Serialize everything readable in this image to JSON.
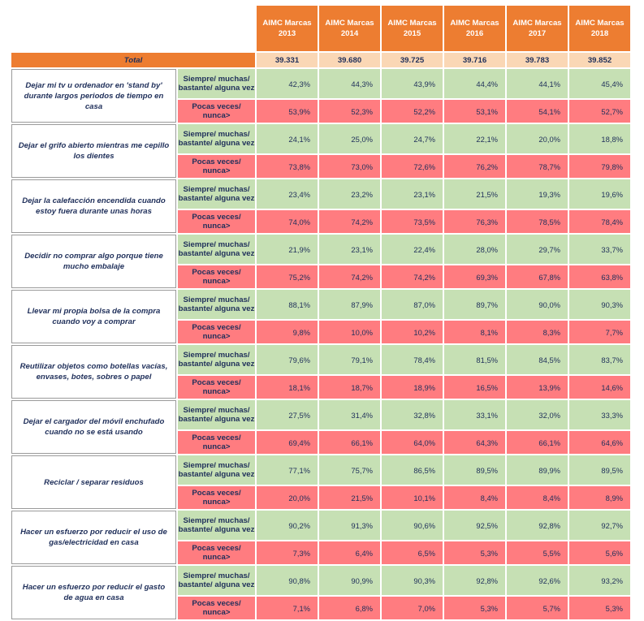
{
  "years": [
    "AIMC Marcas\n2013",
    "AIMC Marcas\n2014",
    "AIMC Marcas\n2015",
    "AIMC Marcas\n2016",
    "AIMC Marcas\n2017",
    "AIMC Marcas\n2018"
  ],
  "year_lines": [
    [
      "AIMC Marcas",
      "2013"
    ],
    [
      "AIMC Marcas",
      "2014"
    ],
    [
      "AIMC Marcas",
      "2015"
    ],
    [
      "AIMC Marcas",
      "2016"
    ],
    [
      "AIMC Marcas",
      "2017"
    ],
    [
      "AIMC Marcas",
      "2018"
    ]
  ],
  "total": {
    "label": "Total",
    "values": [
      "39.331",
      "39.680",
      "39.725",
      "39.716",
      "39.783",
      "39.852"
    ]
  },
  "answer_labels": {
    "positive": "Siempre/ muchas/ bastante/ alguna vez",
    "negative": "Pocas veces/ nunca>"
  },
  "colors": {
    "header": "#ed7d31",
    "total_values": "#fad7b5",
    "positive": "#c6e0b4",
    "negative": "#ff7c80",
    "text": "#1f2f5a"
  },
  "rows": [
    {
      "question": "Dejar mi tv u ordenador en 'stand by' durante largos periodos de tiempo en casa",
      "positive": [
        "42,3%",
        "44,3%",
        "43,9%",
        "44,4%",
        "44,1%",
        "45,4%"
      ],
      "negative": [
        "53,9%",
        "52,3%",
        "52,2%",
        "53,1%",
        "54,1%",
        "52,7%"
      ]
    },
    {
      "question": "Dejar el grifo abierto mientras me cepillo los dientes",
      "positive": [
        "24,1%",
        "25,0%",
        "24,7%",
        "22,1%",
        "20,0%",
        "18,8%"
      ],
      "negative": [
        "73,8%",
        "73,0%",
        "72,6%",
        "76,2%",
        "78,7%",
        "79,8%"
      ]
    },
    {
      "question": "Dejar la calefacción encendida cuando estoy fuera durante unas horas",
      "positive": [
        "23,4%",
        "23,2%",
        "23,1%",
        "21,5%",
        "19,3%",
        "19,6%"
      ],
      "negative": [
        "74,0%",
        "74,2%",
        "73,5%",
        "76,3%",
        "78,5%",
        "78,4%"
      ]
    },
    {
      "question": "Decidir no comprar algo porque tiene mucho embalaje",
      "positive": [
        "21,9%",
        "23,1%",
        "22,4%",
        "28,0%",
        "29,7%",
        "33,7%"
      ],
      "negative": [
        "75,2%",
        "74,2%",
        "74,2%",
        "69,3%",
        "67,8%",
        "63,8%"
      ]
    },
    {
      "question": "Llevar mi propia bolsa de la compra cuando voy a comprar",
      "positive": [
        "88,1%",
        "87,9%",
        "87,0%",
        "89,7%",
        "90,0%",
        "90,3%"
      ],
      "negative": [
        "9,8%",
        "10,0%",
        "10,2%",
        "8,1%",
        "8,3%",
        "7,7%"
      ]
    },
    {
      "question": "Reutilizar objetos como botellas vacías, envases, botes, sobres o papel",
      "positive": [
        "79,6%",
        "79,1%",
        "78,4%",
        "81,5%",
        "84,5%",
        "83,7%"
      ],
      "negative": [
        "18,1%",
        "18,7%",
        "18,9%",
        "16,5%",
        "13,9%",
        "14,6%"
      ]
    },
    {
      "question": "Dejar el cargador del móvil enchufado cuando no se está usando",
      "positive": [
        "27,5%",
        "31,4%",
        "32,8%",
        "33,1%",
        "32,0%",
        "33,3%"
      ],
      "negative": [
        "69,4%",
        "66,1%",
        "64,0%",
        "64,3%",
        "66,1%",
        "64,6%"
      ]
    },
    {
      "question": "Reciclar / separar residuos",
      "positive": [
        "77,1%",
        "75,7%",
        "86,5%",
        "89,5%",
        "89,9%",
        "89,5%"
      ],
      "negative": [
        "20,0%",
        "21,5%",
        "10,1%",
        "8,4%",
        "8,4%",
        "8,9%"
      ]
    },
    {
      "question": "Hacer un esfuerzo por reducir el uso de gas/electricidad en casa",
      "positive": [
        "90,2%",
        "91,3%",
        "90,6%",
        "92,5%",
        "92,8%",
        "92,7%"
      ],
      "negative": [
        "7,3%",
        "6,4%",
        "6,5%",
        "5,3%",
        "5,5%",
        "5,6%"
      ]
    },
    {
      "question": "Hacer un esfuerzo por reducir el gasto de agua en casa",
      "positive": [
        "90,8%",
        "90,9%",
        "90,3%",
        "92,8%",
        "92,6%",
        "93,2%"
      ],
      "negative": [
        "7,1%",
        "6,8%",
        "7,0%",
        "5,3%",
        "5,7%",
        "5,3%"
      ]
    }
  ]
}
